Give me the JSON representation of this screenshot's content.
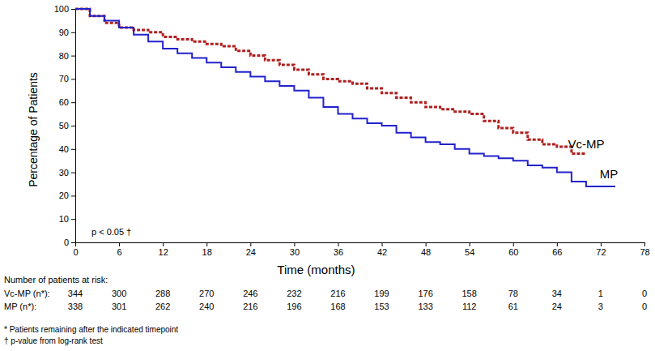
{
  "chart_data": {
    "type": "line",
    "x_label": "Time (months)",
    "y_label": "Percentage of Patients",
    "annotation": "p < 0.05 †",
    "x": [
      0,
      2,
      4,
      6,
      8,
      10,
      12,
      14,
      16,
      18,
      20,
      22,
      24,
      26,
      28,
      30,
      32,
      34,
      36,
      38,
      40,
      42,
      44,
      46,
      48,
      50,
      52,
      54,
      56,
      58,
      60,
      62,
      64,
      66,
      68,
      70,
      72,
      74
    ],
    "series": [
      {
        "name": "Vc-MP",
        "color": "#b02020",
        "line_style": "dashed",
        "values": [
          100,
          97,
          94,
          92,
          91,
          90,
          88,
          87,
          86,
          85,
          84,
          82,
          80,
          78,
          76,
          74,
          72,
          70,
          69,
          68,
          66,
          64,
          62,
          60,
          58,
          57,
          56,
          55,
          52,
          49,
          47,
          44,
          42,
          41,
          38,
          38,
          null,
          null
        ]
      },
      {
        "name": "MP",
        "color": "#2222cc",
        "line_style": "solid",
        "values": [
          100,
          97,
          95,
          92,
          89,
          86,
          83,
          81,
          79,
          77,
          75,
          73,
          71,
          69,
          67,
          65,
          62,
          58,
          55,
          53,
          51,
          50,
          47,
          45,
          43,
          42,
          40,
          38,
          37,
          36,
          35,
          33,
          32,
          30,
          26,
          24,
          24,
          24
        ]
      }
    ],
    "xlim": [
      0,
      78
    ],
    "xticks": [
      0,
      6,
      12,
      18,
      24,
      30,
      36,
      42,
      48,
      54,
      60,
      66,
      72,
      78
    ],
    "ylim": [
      0,
      100
    ],
    "yticks": [
      0,
      10,
      20,
      30,
      40,
      50,
      60,
      70,
      80,
      90,
      100
    ],
    "grid": false,
    "at_risk": {
      "title": "Number of patients at risk:",
      "rows": [
        {
          "label": "Vc-MP (n*):",
          "values": [
            344,
            300,
            288,
            270,
            246,
            232,
            216,
            199,
            176,
            158,
            78,
            34,
            1,
            0
          ]
        },
        {
          "label": "MP (n*):",
          "values": [
            338,
            301,
            262,
            240,
            216,
            196,
            168,
            153,
            133,
            112,
            61,
            24,
            3,
            0
          ]
        }
      ]
    },
    "footnotes": [
      "* Patients remaining after the indicated timepoint",
      "† p-value from log-rank test"
    ]
  }
}
